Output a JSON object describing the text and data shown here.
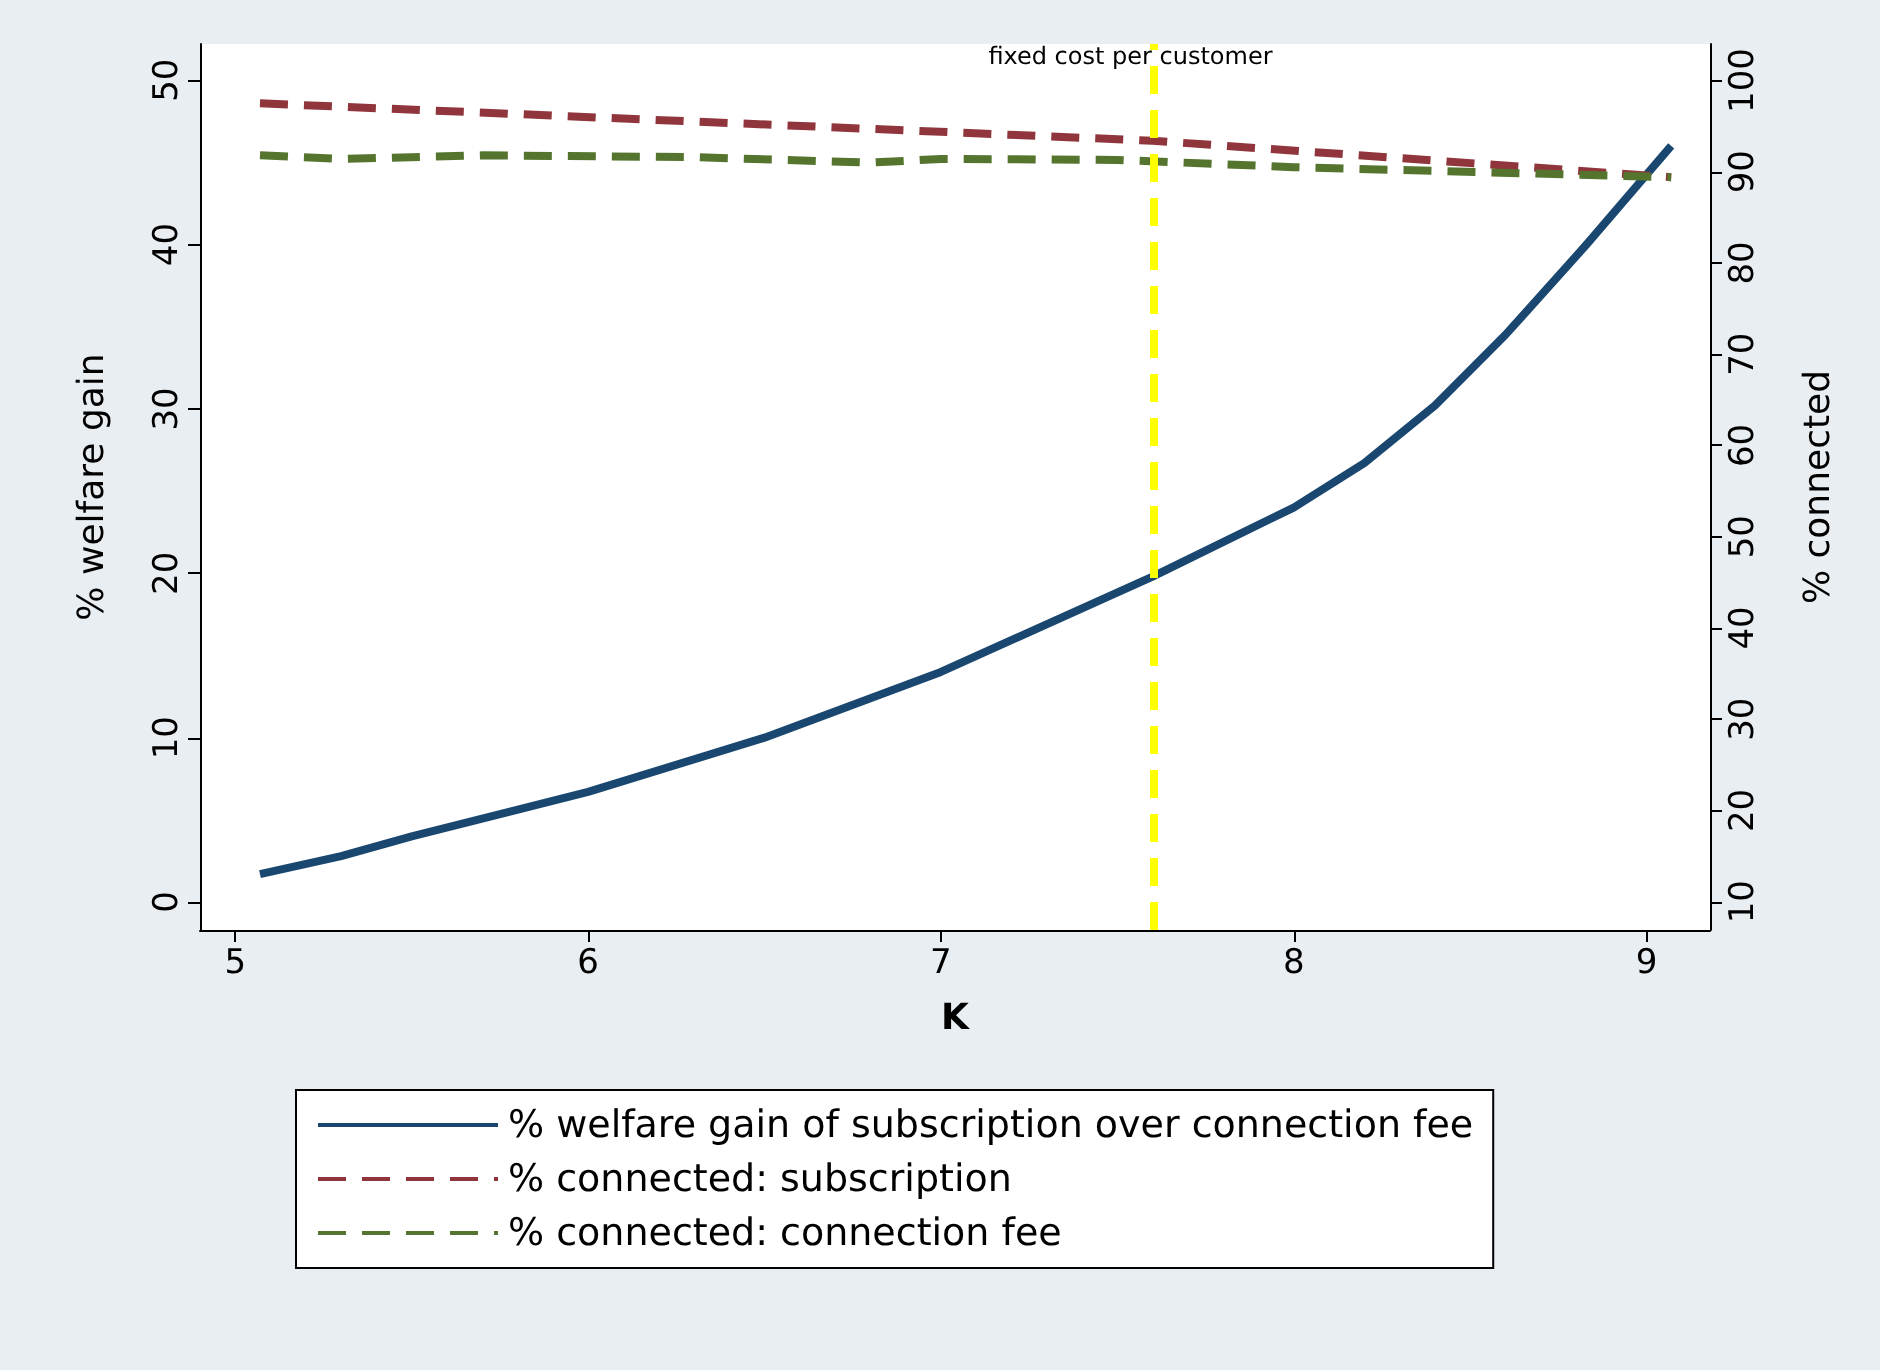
{
  "chart_data": {
    "type": "line",
    "xlabel": "K",
    "ylabel": "% welfare gain",
    "y2label": "% connected",
    "xlim": [
      4.9,
      9.18
    ],
    "xticks": [
      5,
      6,
      7,
      8,
      9
    ],
    "ylim": [
      -1.7,
      52.2
    ],
    "yticks": [
      0,
      10,
      20,
      30,
      40,
      50
    ],
    "y2lim": [
      6.9,
      104
    ],
    "y2ticks": [
      10,
      20,
      30,
      40,
      50,
      60,
      70,
      80,
      90,
      100
    ],
    "grid": false,
    "legend": "bottom",
    "marker": "none",
    "series": [
      {
        "name": "% welfare gain of subscription over connection fee",
        "color": "#1a476f",
        "line_style": "solid",
        "x": [
          5.07,
          5.3,
          5.5,
          6,
          6.5,
          7,
          7.6,
          8,
          8.2,
          8.4,
          8.6,
          8.83,
          9.07
        ],
        "values": [
          1.7,
          2.8,
          4.0,
          6.7,
          10,
          14,
          19.8,
          24,
          26.7,
          30.2,
          34.5,
          40,
          46
        ]
      },
      {
        "name": "% connected: subscription",
        "color": "#90353b",
        "line_style": "dashed",
        "axis": "y2",
        "x": [
          5.07,
          7.6,
          9.07
        ],
        "values": [
          97.5,
          93.4,
          89.4
        ]
      },
      {
        "name": "% connected: connection fee",
        "color": "#55752f",
        "line_style": "dashed",
        "axis": "y2",
        "x": [
          5.07,
          5.3,
          5.7,
          6.3,
          6.8,
          7,
          7.5,
          8,
          9.07
        ],
        "values": [
          91.8,
          91.4,
          91.8,
          91.6,
          91,
          91.4,
          91.3,
          90.5,
          89.4
        ]
      }
    ],
    "ref_lines": [
      {
        "axis": "x",
        "value": 7.6,
        "label": "fixed cost per customer",
        "color": "#ffff00",
        "line_style": "dashed"
      }
    ]
  }
}
